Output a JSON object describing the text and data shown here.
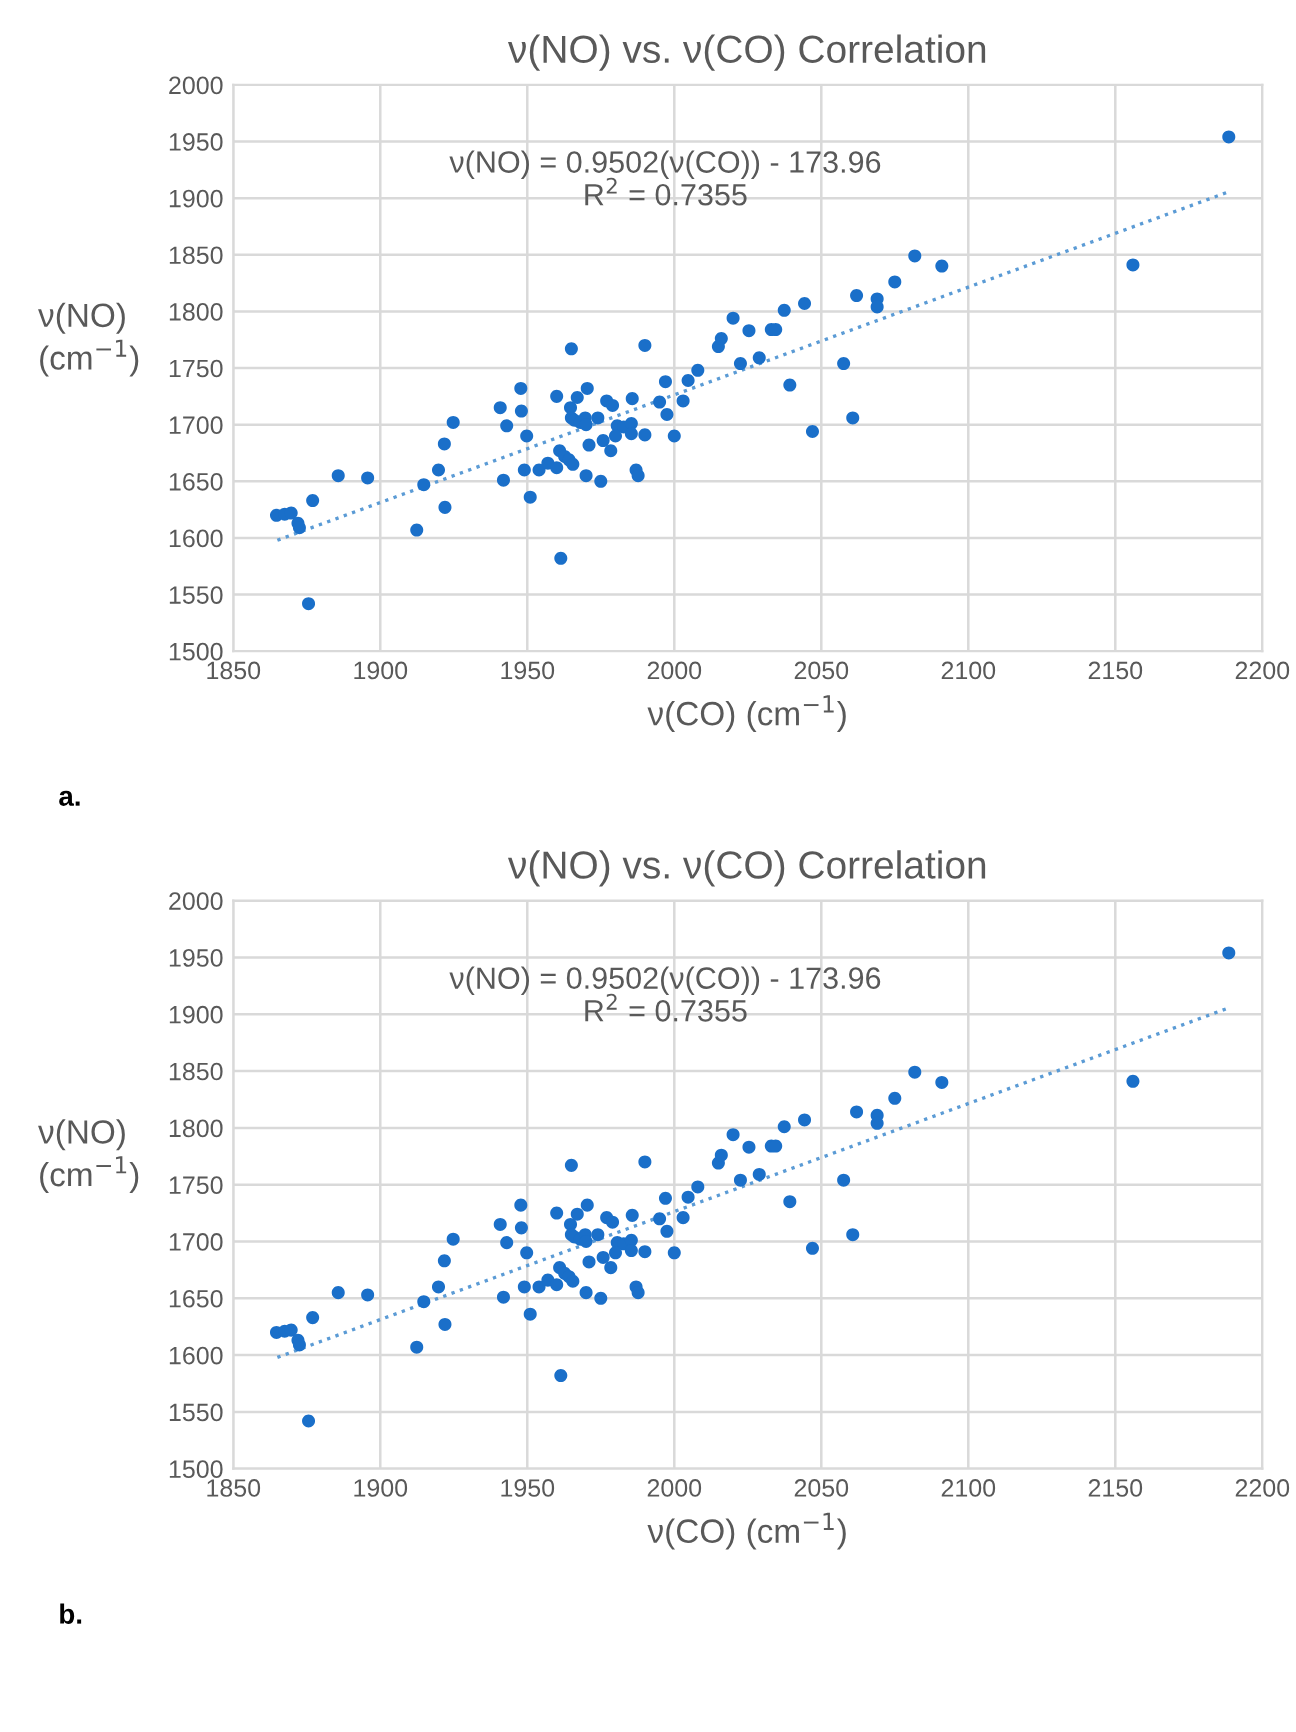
{
  "chart_data": [
    {
      "type": "scatter",
      "title": "ν(NO) vs. ν(CO) Correlation",
      "xlabel": "ν(CO) (cm$^{−1}$)",
      "ylabel": "ν(NO)\n(cm$^{−1}$)",
      "annotations": [
        "ν(NO) = 0.9502(ν(CO)) - 173.96\nR$^{2}$ = 0.7355",
        "a."
      ],
      "xlim": [
        1850,
        2200
      ],
      "xticks": [
        1850,
        1900,
        1950,
        2000,
        2050,
        2100,
        2150,
        2200
      ],
      "ylim": [
        1500,
        2000
      ],
      "yticks": [
        1500,
        1550,
        1600,
        1650,
        1700,
        1750,
        1800,
        1850,
        1900,
        1950,
        2000
      ],
      "grid": true,
      "marker": "circle",
      "series": [
        {
          "color": "#1a6fc9",
          "x": [
            1864.7,
            1867.5,
            1869.7,
            1872,
            1872.5,
            1875.6,
            1877,
            1885.7,
            1895.7,
            1912.4,
            1914.8,
            1919.8,
            1922,
            1921.8,
            1924.8,
            1940.8,
            1941.9,
            1943,
            1947.8,
            1948,
            1949.8,
            1949,
            1951,
            1954,
            1957,
            1960,
            1961.4,
            1960,
            1961,
            1962.7,
            1964.2,
            1965.5,
            1965,
            1964.7,
            1965,
            1966,
            1967,
            1968,
            1969.7,
            1970,
            1970.4,
            1971,
            1970,
            1974,
            1975.8,
            1975,
            1977,
            1979,
            1978.4,
            1980.6,
            1982.8,
            1985.4,
            1980,
            1985.4,
            1985.7,
            1987,
            1987.7,
            1990,
            1990,
            1995,
            1997,
            1997.5,
            2000,
            2003,
            2004.7,
            2008,
            2015,
            2016,
            2020,
            2025.4,
            2022.5,
            2028.9,
            2033,
            2034.5,
            2037.4,
            2039.3,
            2044.3,
            2047,
            2057.6,
            2060.7,
            2062,
            2069,
            2069,
            2075,
            2081.8,
            2091,
            2156,
            2188.6
          ],
          "values": [
            1620,
            1621,
            1622,
            1613,
            1609,
            1542,
            1633,
            1655,
            1653,
            1607,
            1647,
            1660,
            1627,
            1683,
            1702,
            1715,
            1651,
            1699,
            1732,
            1712,
            1690,
            1660,
            1636,
            1660,
            1666,
            1662,
            1582,
            1725,
            1677,
            1672,
            1669,
            1665,
            1767,
            1715,
            1706,
            1704,
            1724,
            1702,
            1706,
            1700,
            1732,
            1682,
            1655,
            1706,
            1686,
            1650,
            1721,
            1717,
            1677,
            1699,
            1698,
            1701,
            1690,
            1692,
            1723,
            1660,
            1655,
            1691,
            1770,
            1720,
            1738,
            1709,
            1690,
            1721,
            1739,
            1748,
            1769,
            1776,
            1794,
            1783,
            1754,
            1759,
            1784,
            1784,
            1801,
            1735,
            1807,
            1694,
            1754,
            1706,
            1814,
            1811,
            1804,
            1826,
            1849,
            1840,
            1841,
            1954
          ]
        },
        {
          "type": "line",
          "color": "#5b9bd5",
          "line_style": "dotted",
          "marker": "none",
          "x": [
            1865,
            2189
          ],
          "values": [
            1598,
            1906
          ]
        }
      ]
    },
    {
      "type": "scatter",
      "title": "ν(NO) vs. ν(CO) Correlation",
      "xlabel": "ν(CO) (cm$^{−1}$)",
      "ylabel": "ν(NO)\n(cm$^{−1}$)",
      "annotations": [
        "ν(NO) = 0.9502(ν(CO)) - 173.96\nR$^{2}$ = 0.7355",
        "b."
      ],
      "xlim": [
        1850,
        2200
      ],
      "xticks": [
        1850,
        1900,
        1950,
        2000,
        2050,
        2100,
        2150,
        2200
      ],
      "ylim": [
        1500,
        2000
      ],
      "yticks": [
        1500,
        1550,
        1600,
        1650,
        1700,
        1750,
        1800,
        1850,
        1900,
        1950,
        2000
      ],
      "grid": true,
      "marker": "circle",
      "series": [
        {
          "color": "#1a6fc9",
          "x": [
            1864.7,
            1867.5,
            1869.7,
            1872,
            1872.5,
            1875.6,
            1877,
            1885.7,
            1895.7,
            1912.4,
            1914.8,
            1919.8,
            1922,
            1921.8,
            1924.8,
            1940.8,
            1941.9,
            1943,
            1947.8,
            1948,
            1949.8,
            1949,
            1951,
            1954,
            1957,
            1960,
            1961.4,
            1960,
            1961,
            1962.7,
            1964.2,
            1965.5,
            1965,
            1964.7,
            1965,
            1966,
            1967,
            1968,
            1969.7,
            1970,
            1970.4,
            1971,
            1970,
            1974,
            1975.8,
            1975,
            1977,
            1979,
            1978.4,
            1980.6,
            1982.8,
            1985.4,
            1980,
            1985.4,
            1985.7,
            1987,
            1987.7,
            1990,
            1990,
            1995,
            1997,
            1997.5,
            2000,
            2003,
            2004.7,
            2008,
            2015,
            2016,
            2020,
            2025.4,
            2022.5,
            2028.9,
            2033,
            2034.5,
            2037.4,
            2039.3,
            2044.3,
            2047,
            2057.6,
            2060.7,
            2062,
            2069,
            2069,
            2075,
            2081.8,
            2091,
            2156,
            2188.6
          ],
          "values": [
            1620,
            1621,
            1622,
            1613,
            1609,
            1542,
            1633,
            1655,
            1653,
            1607,
            1647,
            1660,
            1627,
            1683,
            1702,
            1715,
            1651,
            1699,
            1732,
            1712,
            1690,
            1660,
            1636,
            1660,
            1666,
            1662,
            1582,
            1725,
            1677,
            1672,
            1669,
            1665,
            1767,
            1715,
            1706,
            1704,
            1724,
            1702,
            1706,
            1700,
            1732,
            1682,
            1655,
            1706,
            1686,
            1650,
            1721,
            1717,
            1677,
            1699,
            1698,
            1701,
            1690,
            1692,
            1723,
            1660,
            1655,
            1691,
            1770,
            1720,
            1738,
            1709,
            1690,
            1721,
            1739,
            1748,
            1769,
            1776,
            1794,
            1783,
            1754,
            1759,
            1784,
            1784,
            1801,
            1735,
            1807,
            1694,
            1754,
            1706,
            1814,
            1811,
            1804,
            1826,
            1849,
            1840,
            1841,
            1954
          ]
        },
        {
          "type": "line",
          "color": "#5b9bd5",
          "line_style": "dotted",
          "marker": "none",
          "x": [
            1865,
            2189
          ],
          "values": [
            1598,
            1906
          ]
        }
      ]
    }
  ]
}
